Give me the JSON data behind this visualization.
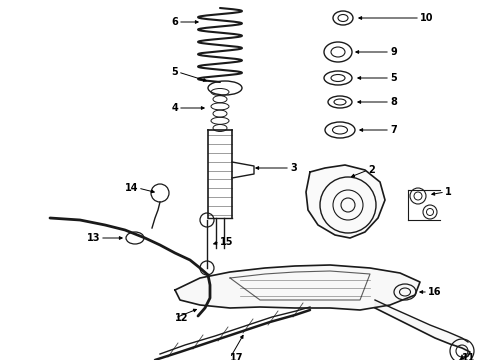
{
  "bg_color": "#ffffff",
  "line_color": "#1a1a1a",
  "label_color": "#000000",
  "fig_width": 4.9,
  "fig_height": 3.6,
  "dpi": 100
}
